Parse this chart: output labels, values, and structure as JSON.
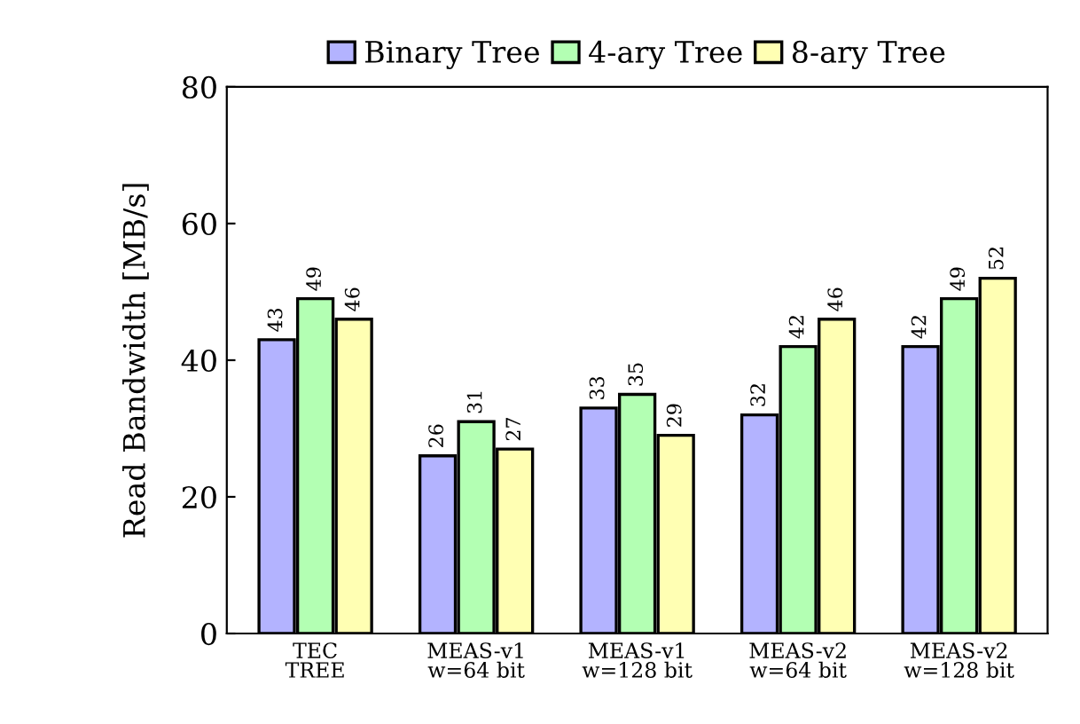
{
  "chart_data": {
    "type": "bar",
    "ylabel": "Read Bandwidth [MB/s]",
    "categories": [
      "TEC\nTREE",
      "MEAS-v1\nw=64 bit",
      "MEAS-v1\nw=128 bit",
      "MEAS-v2\nw=64 bit",
      "MEAS-v2\nw=128 bit"
    ],
    "series": [
      {
        "name": "Binary Tree",
        "color": "#b3b3ff",
        "values": [
          43,
          26,
          33,
          32,
          42
        ]
      },
      {
        "name": "4-ary Tree",
        "color": "#b3ffb3",
        "values": [
          49,
          31,
          35,
          42,
          49
        ]
      },
      {
        "name": "8-ary Tree",
        "color": "#ffffb3",
        "values": [
          46,
          27,
          29,
          46,
          52
        ]
      }
    ],
    "ylim": [
      0,
      80
    ],
    "yticks": [
      0,
      20,
      40,
      60,
      80
    ],
    "grid": false,
    "legend": "top",
    "data_labels": true
  }
}
